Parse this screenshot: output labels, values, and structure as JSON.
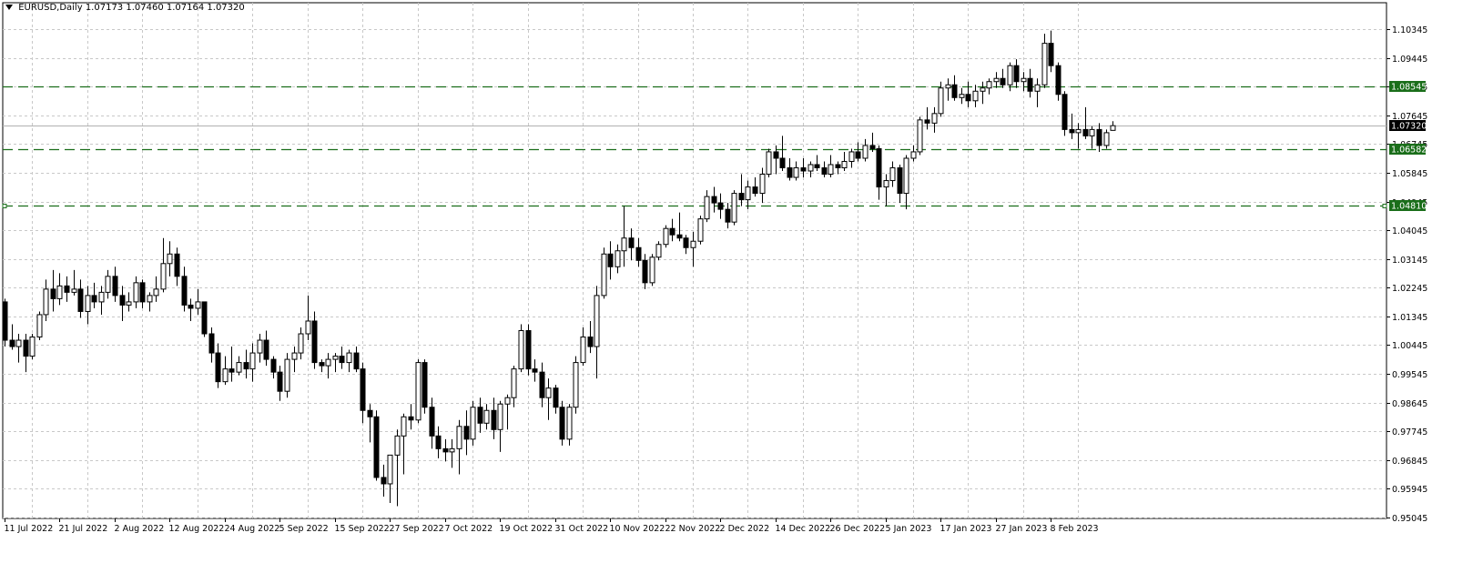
{
  "header": {
    "symbol": "EURUSD,Daily",
    "ohlc": "1.07173 1.07460 1.07164 1.07320"
  },
  "colors": {
    "background": "#ffffff",
    "grid": "#c8c8c8",
    "candle": "#000000",
    "level_line": "#1a6e1a",
    "level_label_bg": "#1a6e1a",
    "price_label_bg": "#000000"
  },
  "chart_data": {
    "type": "candlestick",
    "title": "EURUSD,Daily",
    "current_price": 1.0732,
    "ylim": [
      0.95045,
      1.10745
    ],
    "grid": true,
    "y_ticks": [
      "1.10345",
      "1.09445",
      "1.08545",
      "1.07645",
      "1.06745",
      "1.05845",
      "1.04945",
      "1.04045",
      "1.03145",
      "1.02245",
      "1.01345",
      "1.00445",
      "0.99545",
      "0.98645",
      "0.97745",
      "0.96845",
      "0.95945",
      "0.95045"
    ],
    "y_tick_values": [
      1.10345,
      1.09445,
      1.08545,
      1.07645,
      1.06745,
      1.05845,
      1.04945,
      1.04045,
      1.03145,
      1.02245,
      1.01345,
      1.00445,
      0.99545,
      0.98645,
      0.97745,
      0.96845,
      0.95945,
      0.95045
    ],
    "x_labels": [
      "11 Jul 2022",
      "21 Jul 2022",
      "2 Aug 2022",
      "12 Aug 2022",
      "24 Aug 2022",
      "5 Sep 2022",
      "15 Sep 2022",
      "27 Sep 2022",
      "7 Oct 2022",
      "19 Oct 2022",
      "31 Oct 2022",
      "10 Nov 2022",
      "22 Nov 2022",
      "2 Dec 2022",
      "14 Dec 2022",
      "26 Dec 2022",
      "5 Jan 2023",
      "17 Jan 2023",
      "27 Jan 2023",
      "8 Feb 2023"
    ],
    "x_label_bar_index": [
      0,
      8,
      16,
      24,
      32,
      40,
      48,
      56,
      64,
      72,
      80,
      88,
      96,
      104,
      112,
      120,
      128,
      136,
      144,
      152
    ],
    "levels": [
      {
        "value": 1.08545,
        "label": "1.08545"
      },
      {
        "value": 1.06582,
        "label": "1.06582"
      },
      {
        "value": 1.0481,
        "label": "1.04810"
      }
    ],
    "current_label": "1.07320",
    "candles": [
      [
        1.018,
        1.019,
        1.004,
        1.006
      ],
      [
        1.006,
        1.011,
        1.003,
        1.004
      ],
      [
        1.004,
        1.008,
        0.999,
        1.006
      ],
      [
        1.006,
        1.008,
        0.996,
        1.001
      ],
      [
        1.001,
        1.008,
        1.0,
        1.007
      ],
      [
        1.007,
        1.015,
        1.006,
        1.014
      ],
      [
        1.014,
        1.025,
        1.012,
        1.022
      ],
      [
        1.022,
        1.028,
        1.015,
        1.019
      ],
      [
        1.019,
        1.027,
        1.017,
        1.023
      ],
      [
        1.023,
        1.026,
        1.018,
        1.021
      ],
      [
        1.021,
        1.028,
        1.02,
        1.022
      ],
      [
        1.022,
        1.025,
        1.013,
        1.015
      ],
      [
        1.015,
        1.023,
        1.011,
        1.02
      ],
      [
        1.02,
        1.024,
        1.016,
        1.018
      ],
      [
        1.018,
        1.023,
        1.014,
        1.021
      ],
      [
        1.021,
        1.028,
        1.019,
        1.026
      ],
      [
        1.026,
        1.029,
        1.018,
        1.02
      ],
      [
        1.02,
        1.023,
        1.012,
        1.017
      ],
      [
        1.017,
        1.021,
        1.015,
        1.018
      ],
      [
        1.018,
        1.026,
        1.016,
        1.024
      ],
      [
        1.024,
        1.025,
        1.016,
        1.018
      ],
      [
        1.018,
        1.021,
        1.015,
        1.02
      ],
      [
        1.02,
        1.026,
        1.018,
        1.022
      ],
      [
        1.022,
        1.038,
        1.021,
        1.03
      ],
      [
        1.03,
        1.037,
        1.026,
        1.033
      ],
      [
        1.033,
        1.035,
        1.023,
        1.026
      ],
      [
        1.026,
        1.029,
        1.015,
        1.017
      ],
      [
        1.017,
        1.019,
        1.012,
        1.016
      ],
      [
        1.016,
        1.022,
        1.014,
        1.018
      ],
      [
        1.018,
        1.018,
        1.007,
        1.008
      ],
      [
        1.008,
        1.01,
        0.999,
        1.002
      ],
      [
        1.002,
        1.005,
        0.991,
        0.993
      ],
      [
        0.993,
        1.001,
        0.992,
        0.997
      ],
      [
        0.997,
        1.004,
        0.993,
        0.996
      ],
      [
        0.996,
        1.001,
        0.995,
        0.999
      ],
      [
        0.999,
        1.003,
        0.994,
        0.997
      ],
      [
        0.997,
        1.005,
        0.993,
        1.002
      ],
      [
        1.002,
        1.008,
        0.999,
        1.006
      ],
      [
        1.006,
        1.009,
        0.998,
        1.0
      ],
      [
        1.0,
        1.001,
        0.994,
        0.996
      ],
      [
        0.996,
        0.998,
        0.987,
        0.99
      ],
      [
        0.99,
        1.002,
        0.988,
        1.0
      ],
      [
        1.0,
        1.004,
        0.996,
        1.002
      ],
      [
        1.002,
        1.01,
        1.0,
        1.008
      ],
      [
        1.008,
        1.02,
        1.006,
        1.012
      ],
      [
        1.012,
        1.015,
        0.997,
        0.999
      ],
      [
        0.999,
        1.0,
        0.996,
        0.998
      ],
      [
        0.998,
        1.002,
        0.994,
        1.0
      ],
      [
        1.0,
        1.002,
        0.996,
        1.001
      ],
      [
        1.001,
        1.004,
        0.997,
        0.999
      ],
      [
        0.999,
        1.003,
        0.996,
        1.002
      ],
      [
        1.002,
        1.004,
        0.996,
        0.997
      ],
      [
        0.997,
        0.999,
        0.98,
        0.984
      ],
      [
        0.984,
        0.986,
        0.974,
        0.982
      ],
      [
        0.982,
        0.984,
        0.962,
        0.963
      ],
      [
        0.963,
        0.967,
        0.957,
        0.961
      ],
      [
        0.961,
        0.969,
        0.955,
        0.97
      ],
      [
        0.97,
        0.978,
        0.954,
        0.976
      ],
      [
        0.976,
        0.983,
        0.964,
        0.982
      ],
      [
        0.982,
        0.986,
        0.978,
        0.981
      ],
      [
        0.981,
        1.0,
        0.98,
        0.999
      ],
      [
        0.999,
        1.0,
        0.983,
        0.985
      ],
      [
        0.985,
        0.988,
        0.972,
        0.976
      ],
      [
        0.976,
        0.979,
        0.969,
        0.972
      ],
      [
        0.972,
        0.975,
        0.968,
        0.971
      ],
      [
        0.971,
        0.975,
        0.966,
        0.972
      ],
      [
        0.972,
        0.981,
        0.964,
        0.979
      ],
      [
        0.979,
        0.984,
        0.97,
        0.975
      ],
      [
        0.975,
        0.987,
        0.973,
        0.985
      ],
      [
        0.985,
        0.988,
        0.977,
        0.98
      ],
      [
        0.98,
        0.986,
        0.978,
        0.984
      ],
      [
        0.984,
        0.988,
        0.975,
        0.978
      ],
      [
        0.978,
        0.987,
        0.971,
        0.986
      ],
      [
        0.986,
        0.989,
        0.978,
        0.988
      ],
      [
        0.988,
        0.998,
        0.985,
        0.997
      ],
      [
        0.997,
        1.011,
        0.996,
        1.009
      ],
      [
        1.009,
        1.011,
        0.995,
        0.997
      ],
      [
        0.997,
        1.0,
        0.993,
        0.996
      ],
      [
        0.996,
        0.999,
        0.985,
        0.988
      ],
      [
        0.988,
        0.994,
        0.981,
        0.991
      ],
      [
        0.991,
        0.992,
        0.983,
        0.985
      ],
      [
        0.985,
        0.987,
        0.973,
        0.975
      ],
      [
        0.975,
        0.986,
        0.973,
        0.985
      ],
      [
        0.985,
        1.001,
        0.983,
        0.999
      ],
      [
        0.999,
        1.01,
        0.998,
        1.007
      ],
      [
        1.007,
        1.012,
        1.002,
        1.004
      ],
      [
        1.004,
        1.023,
        0.994,
        1.02
      ],
      [
        1.02,
        1.035,
        1.019,
        1.033
      ],
      [
        1.033,
        1.037,
        1.025,
        1.029
      ],
      [
        1.029,
        1.036,
        1.027,
        1.034
      ],
      [
        1.034,
        1.048,
        1.029,
        1.038
      ],
      [
        1.038,
        1.041,
        1.031,
        1.035
      ],
      [
        1.035,
        1.038,
        1.029,
        1.031
      ],
      [
        1.031,
        1.033,
        1.022,
        1.024
      ],
      [
        1.024,
        1.033,
        1.023,
        1.032
      ],
      [
        1.032,
        1.037,
        1.031,
        1.036
      ],
      [
        1.036,
        1.042,
        1.035,
        1.041
      ],
      [
        1.041,
        1.044,
        1.037,
        1.039
      ],
      [
        1.039,
        1.046,
        1.037,
        1.038
      ],
      [
        1.038,
        1.039,
        1.033,
        1.035
      ],
      [
        1.035,
        1.04,
        1.029,
        1.037
      ],
      [
        1.037,
        1.045,
        1.036,
        1.044
      ],
      [
        1.044,
        1.053,
        1.043,
        1.051
      ],
      [
        1.051,
        1.054,
        1.046,
        1.049
      ],
      [
        1.049,
        1.052,
        1.044,
        1.047
      ],
      [
        1.047,
        1.049,
        1.041,
        1.043
      ],
      [
        1.043,
        1.053,
        1.042,
        1.052
      ],
      [
        1.052,
        1.058,
        1.048,
        1.05
      ],
      [
        1.05,
        1.056,
        1.047,
        1.054
      ],
      [
        1.054,
        1.057,
        1.051,
        1.052
      ],
      [
        1.052,
        1.06,
        1.049,
        1.058
      ],
      [
        1.058,
        1.066,
        1.057,
        1.065
      ],
      [
        1.065,
        1.067,
        1.058,
        1.063
      ],
      [
        1.063,
        1.07,
        1.059,
        1.06
      ],
      [
        1.06,
        1.063,
        1.056,
        1.057
      ],
      [
        1.057,
        1.062,
        1.056,
        1.06
      ],
      [
        1.06,
        1.063,
        1.057,
        1.059
      ],
      [
        1.059,
        1.062,
        1.057,
        1.061
      ],
      [
        1.061,
        1.064,
        1.059,
        1.06
      ],
      [
        1.06,
        1.062,
        1.057,
        1.058
      ],
      [
        1.058,
        1.064,
        1.057,
        1.061
      ],
      [
        1.061,
        1.062,
        1.058,
        1.06
      ],
      [
        1.06,
        1.065,
        1.059,
        1.062
      ],
      [
        1.062,
        1.066,
        1.06,
        1.065
      ],
      [
        1.065,
        1.068,
        1.062,
        1.063
      ],
      [
        1.063,
        1.069,
        1.062,
        1.067
      ],
      [
        1.067,
        1.071,
        1.065,
        1.066
      ],
      [
        1.066,
        1.067,
        1.05,
        1.054
      ],
      [
        1.054,
        1.058,
        1.048,
        1.056
      ],
      [
        1.056,
        1.062,
        1.054,
        1.06
      ],
      [
        1.06,
        1.061,
        1.049,
        1.052
      ],
      [
        1.052,
        1.064,
        1.047,
        1.063
      ],
      [
        1.063,
        1.067,
        1.062,
        1.065
      ],
      [
        1.065,
        1.076,
        1.064,
        1.075
      ],
      [
        1.075,
        1.079,
        1.072,
        1.074
      ],
      [
        1.074,
        1.079,
        1.071,
        1.077
      ],
      [
        1.077,
        1.087,
        1.076,
        1.085
      ],
      [
        1.085,
        1.088,
        1.081,
        1.086
      ],
      [
        1.086,
        1.089,
        1.081,
        1.082
      ],
      [
        1.082,
        1.085,
        1.08,
        1.083
      ],
      [
        1.083,
        1.087,
        1.079,
        1.081
      ],
      [
        1.081,
        1.086,
        1.079,
        1.084
      ],
      [
        1.084,
        1.087,
        1.08,
        1.085
      ],
      [
        1.085,
        1.088,
        1.083,
        1.087
      ],
      [
        1.087,
        1.09,
        1.085,
        1.088
      ],
      [
        1.088,
        1.091,
        1.085,
        1.086
      ],
      [
        1.086,
        1.093,
        1.084,
        1.092
      ],
      [
        1.092,
        1.094,
        1.085,
        1.087
      ],
      [
        1.087,
        1.09,
        1.084,
        1.088
      ],
      [
        1.088,
        1.091,
        1.082,
        1.084
      ],
      [
        1.084,
        1.088,
        1.079,
        1.086
      ],
      [
        1.086,
        1.102,
        1.085,
        1.099
      ],
      [
        1.099,
        1.103,
        1.09,
        1.092
      ],
      [
        1.092,
        1.093,
        1.081,
        1.083
      ],
      [
        1.083,
        1.084,
        1.07,
        1.072
      ],
      [
        1.072,
        1.077,
        1.069,
        1.071
      ],
      [
        1.071,
        1.074,
        1.066,
        1.072
      ],
      [
        1.072,
        1.079,
        1.069,
        1.07
      ],
      [
        1.07,
        1.073,
        1.066,
        1.072
      ],
      [
        1.072,
        1.074,
        1.065,
        1.067
      ],
      [
        1.067,
        1.072,
        1.066,
        1.071
      ],
      [
        1.07173,
        1.0746,
        1.07164,
        1.0732
      ]
    ]
  }
}
